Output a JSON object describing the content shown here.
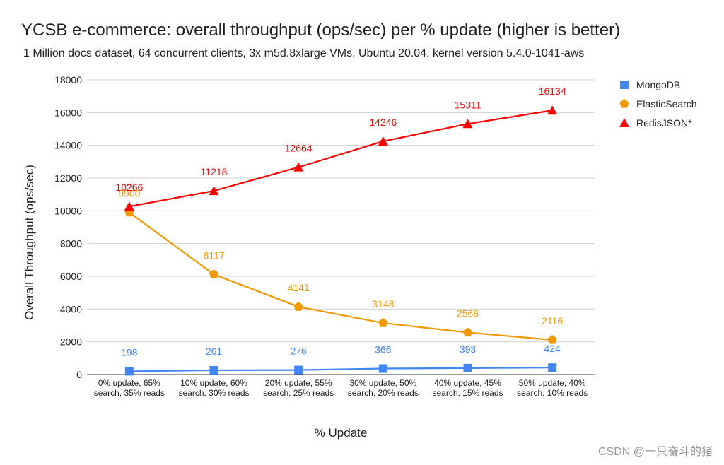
{
  "chart_data": {
    "type": "line",
    "title": "YCSB e-commerce: overall throughput (ops/sec) per % update (higher is better)",
    "subtitle": "1 Million docs dataset, 64 concurrent clients, 3x m5d.8xlarge VMs, Ubuntu 20.04, kernel version 5.4.0-1041-aws",
    "xlabel": "% Update",
    "ylabel": "Overall Throughput (ops/sec)",
    "ylim": [
      0,
      18000
    ],
    "yticks": [
      0,
      2000,
      4000,
      6000,
      8000,
      10000,
      12000,
      14000,
      16000,
      18000
    ],
    "grid": true,
    "legend_position": "right",
    "categories": [
      [
        "0% update, 65%",
        "search, 35% reads"
      ],
      [
        "10% update, 60%",
        "search, 30% reads"
      ],
      [
        "20% update, 55%",
        "search, 25% reads"
      ],
      [
        "30% update, 50%",
        "search, 20% reads"
      ],
      [
        "40% update, 45%",
        "search, 15% reads"
      ],
      [
        "50% update, 40%",
        "search, 10% reads"
      ]
    ],
    "series": [
      {
        "name": "MongoDB",
        "color": "#4285f4",
        "marker": "square",
        "values": [
          198,
          261,
          276,
          366,
          393,
          424
        ]
      },
      {
        "name": "ElasticSearch",
        "color": "#f29900",
        "marker": "pentagon",
        "values": [
          9900,
          6117,
          4141,
          3148,
          2568,
          2116
        ]
      },
      {
        "name": "RedisJSON*",
        "color": "#ff0000",
        "marker": "triangle",
        "values": [
          10266,
          11218,
          12664,
          14246,
          15311,
          16134
        ]
      }
    ]
  },
  "watermark": "CSDN @一只奋斗的猪"
}
